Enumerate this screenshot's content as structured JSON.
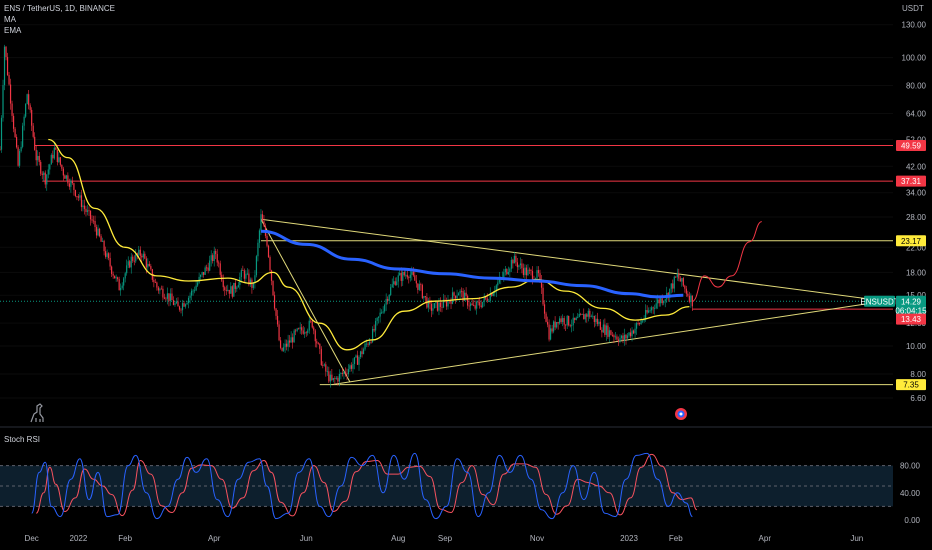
{
  "header": {
    "symbol_line": "ENS / TetherUS, 1D, BINANCE",
    "indicator_ma": "MA",
    "indicator_ema": "EMA"
  },
  "price_axis": {
    "unit": "USDT",
    "ticks": [
      "130.00",
      "100.00",
      "80.00",
      "64.00",
      "52.00",
      "42.00",
      "34.00",
      "28.00",
      "22.00",
      "18.00",
      "15.00",
      "12.00",
      "10.00",
      "8.00",
      "6.60"
    ],
    "tick_values": [
      130,
      100,
      80,
      64,
      52,
      42,
      34,
      28,
      22,
      18,
      15,
      12,
      10,
      8,
      6.6
    ]
  },
  "stoch_axis": {
    "ticks": [
      "80.00",
      "40.00",
      "0.00"
    ],
    "tick_values": [
      80,
      40,
      0
    ]
  },
  "time_axis": {
    "labels": [
      "Dec",
      "2022",
      "Feb",
      "Apr",
      "Jun",
      "Aug",
      "Sep",
      "Nov",
      "2023",
      "Feb",
      "Apr",
      "Jun"
    ],
    "dates": [
      "2021-12-01",
      "2022-01-01",
      "2022-02-01",
      "2022-04-01",
      "2022-06-01",
      "2022-08-01",
      "2022-09-01",
      "2022-11-01",
      "2023-01-01",
      "2023-02-01",
      "2023-04-01",
      "2023-06-01"
    ]
  },
  "price_tags": [
    {
      "label": "49.59",
      "value": 49.59,
      "bg": "#f23645",
      "fg": "#ffffff"
    },
    {
      "label": "37.31",
      "value": 37.31,
      "bg": "#f23645",
      "fg": "#ffffff"
    },
    {
      "label": "23.17",
      "value": 23.17,
      "bg": "#ffeb3b",
      "fg": "#000000"
    },
    {
      "label": "ENSUSDT",
      "value": 14.29,
      "bg": "#089981",
      "fg": "#ffffff"
    },
    {
      "label": "14.29",
      "value": 14.29,
      "bg": "#089981",
      "fg": "#ffffff"
    },
    {
      "label": "06:04:15",
      "value": 13.9,
      "bg": "#089981",
      "fg": "#ffffff"
    },
    {
      "label": "13.43",
      "value": 13.43,
      "bg": "#f23645",
      "fg": "#ffffff"
    },
    {
      "label": "7.35",
      "value": 7.35,
      "bg": "#ffeb3b",
      "fg": "#000000"
    }
  ],
  "stoch_panel": {
    "title": "Stoch RSI"
  },
  "colors": {
    "bull": "#089981",
    "bear": "#f23645",
    "ma": "#2962ff",
    "ema": "#ffeb3b",
    "trendline": "#e0d97a",
    "hline_red": "#f23645",
    "projection": "#f23645",
    "stoch_k": "#2962ff",
    "stoch_d": "#f7525f",
    "stoch_band": "#0d1f2d"
  },
  "chart_data": {
    "type": "candlestick",
    "title": "ENS / TetherUS, 1D, BINANCE",
    "ylabel": "USDT",
    "y_scale": "log",
    "ylim": [
      6,
      135
    ],
    "xlim": [
      "2021-11-10",
      "2023-06-25"
    ],
    "horizontal_levels": [
      49.59,
      37.31,
      23.17,
      13.43,
      7.35
    ],
    "current_price": 14.29,
    "close_path": [
      [
        "2021-11-10",
        48
      ],
      [
        "2021-11-13",
        110
      ],
      [
        "2021-11-18",
        65
      ],
      [
        "2021-11-22",
        42
      ],
      [
        "2021-11-28",
        75
      ],
      [
        "2021-12-04",
        45
      ],
      [
        "2021-12-10",
        38
      ],
      [
        "2021-12-16",
        48
      ],
      [
        "2021-12-22",
        40
      ],
      [
        "2021-12-28",
        36
      ],
      [
        "2022-01-05",
        30
      ],
      [
        "2022-01-12",
        26
      ],
      [
        "2022-01-22",
        19
      ],
      [
        "2022-01-28",
        16
      ],
      [
        "2022-02-05",
        20
      ],
      [
        "2022-02-12",
        21
      ],
      [
        "2022-02-22",
        16
      ],
      [
        "2022-03-01",
        15
      ],
      [
        "2022-03-08",
        13.5
      ],
      [
        "2022-03-16",
        15
      ],
      [
        "2022-03-25",
        18
      ],
      [
        "2022-04-02",
        21
      ],
      [
        "2022-04-08",
        16
      ],
      [
        "2022-04-13",
        15.5
      ],
      [
        "2022-04-20",
        18
      ],
      [
        "2022-04-27",
        16
      ],
      [
        "2022-05-02",
        28
      ],
      [
        "2022-05-06",
        23
      ],
      [
        "2022-05-11",
        14
      ],
      [
        "2022-05-15",
        9.5
      ],
      [
        "2022-05-25",
        11
      ],
      [
        "2022-06-05",
        12
      ],
      [
        "2022-06-12",
        8.5
      ],
      [
        "2022-06-18",
        7.5
      ],
      [
        "2022-06-25",
        8
      ],
      [
        "2022-07-05",
        9
      ],
      [
        "2022-07-15",
        11
      ],
      [
        "2022-07-25",
        15
      ],
      [
        "2022-07-30",
        17
      ],
      [
        "2022-08-08",
        18
      ],
      [
        "2022-08-15",
        16
      ],
      [
        "2022-08-22",
        13.5
      ],
      [
        "2022-09-01",
        14
      ],
      [
        "2022-09-10",
        15.5
      ],
      [
        "2022-09-20",
        13.5
      ],
      [
        "2022-09-28",
        14.5
      ],
      [
        "2022-10-08",
        17
      ],
      [
        "2022-10-16",
        20
      ],
      [
        "2022-10-25",
        18
      ],
      [
        "2022-11-02",
        17.5
      ],
      [
        "2022-11-09",
        11
      ],
      [
        "2022-11-15",
        12.5
      ],
      [
        "2022-11-25",
        12
      ],
      [
        "2022-12-05",
        13
      ],
      [
        "2022-12-15",
        11.5
      ],
      [
        "2022-12-28",
        10.5
      ],
      [
        "2023-01-08",
        12
      ],
      [
        "2023-01-18",
        14
      ],
      [
        "2023-01-26",
        15
      ],
      [
        "2023-02-02",
        17.5
      ],
      [
        "2023-02-08",
        15.5
      ],
      [
        "2023-02-12",
        14.29
      ]
    ],
    "ma_path": [
      [
        "2022-05-02",
        25
      ],
      [
        "2022-06-01",
        22.5
      ],
      [
        "2022-07-01",
        20
      ],
      [
        "2022-08-01",
        18.5
      ],
      [
        "2022-09-01",
        17.8
      ],
      [
        "2022-10-01",
        17.2
      ],
      [
        "2022-11-01",
        16.8
      ],
      [
        "2022-12-01",
        16.2
      ],
      [
        "2023-01-01",
        15.2
      ],
      [
        "2023-01-20",
        14.8
      ],
      [
        "2023-02-06",
        15
      ]
    ],
    "ema_path": [
      [
        "2021-12-12",
        52
      ],
      [
        "2021-12-25",
        45
      ],
      [
        "2022-01-12",
        30
      ],
      [
        "2022-02-01",
        22
      ],
      [
        "2022-02-22",
        17.5
      ],
      [
        "2022-03-15",
        16.8
      ],
      [
        "2022-04-10",
        17.2
      ],
      [
        "2022-04-25",
        16.5
      ],
      [
        "2022-05-10",
        18
      ],
      [
        "2022-05-20",
        16
      ],
      [
        "2022-06-10",
        12
      ],
      [
        "2022-06-28",
        9.7
      ],
      [
        "2022-07-15",
        10.5
      ],
      [
        "2022-08-05",
        13.2
      ],
      [
        "2022-08-25",
        14.3
      ],
      [
        "2022-09-20",
        14.6
      ],
      [
        "2022-10-15",
        16
      ],
      [
        "2022-11-01",
        17
      ],
      [
        "2022-11-20",
        15.5
      ],
      [
        "2022-12-15",
        13.5
      ],
      [
        "2023-01-05",
        12.3
      ],
      [
        "2023-01-25",
        12.8
      ],
      [
        "2023-02-10",
        13.7
      ]
    ],
    "projection_path": [
      [
        "2023-02-12",
        14.3
      ],
      [
        "2023-02-20",
        17.5
      ],
      [
        "2023-03-01",
        16
      ],
      [
        "2023-03-10",
        17.5
      ],
      [
        "2023-03-22",
        23
      ],
      [
        "2023-03-30",
        27
      ]
    ],
    "trendlines": [
      {
        "from": [
          "2022-05-02",
          27.5
        ],
        "to": [
          "2023-06-25",
          14.2
        ]
      },
      {
        "from": [
          "2022-06-18",
          7.35
        ],
        "to": [
          "2023-06-15",
          14.2
        ]
      },
      {
        "from": [
          "2022-05-02",
          27.5
        ],
        "to": [
          "2022-06-30",
          7.5
        ]
      }
    ],
    "stoch_rsi": {
      "ylim": [
        0,
        100
      ],
      "bands": [
        20,
        80
      ],
      "k_path": [
        [
          "2021-12-01",
          10
        ],
        [
          "2021-12-06",
          70
        ],
        [
          "2021-12-10",
          85
        ],
        [
          "2021-12-14",
          20
        ],
        [
          "2021-12-20",
          5
        ],
        [
          "2021-12-27",
          60
        ],
        [
          "2022-01-02",
          90
        ],
        [
          "2022-01-08",
          30
        ],
        [
          "2022-01-14",
          70
        ],
        [
          "2022-01-20",
          5
        ],
        [
          "2022-01-27",
          8
        ],
        [
          "2022-02-03",
          80
        ],
        [
          "2022-02-08",
          95
        ],
        [
          "2022-02-15",
          40
        ],
        [
          "2022-02-22",
          2
        ],
        [
          "2022-03-01",
          20
        ],
        [
          "2022-03-08",
          60
        ],
        [
          "2022-03-14",
          92
        ],
        [
          "2022-03-20",
          70
        ],
        [
          "2022-03-27",
          90
        ],
        [
          "2022-04-03",
          30
        ],
        [
          "2022-04-10",
          5
        ],
        [
          "2022-04-17",
          60
        ],
        [
          "2022-04-24",
          85
        ],
        [
          "2022-05-01",
          90
        ],
        [
          "2022-05-06",
          50
        ],
        [
          "2022-05-12",
          2
        ],
        [
          "2022-05-20",
          10
        ],
        [
          "2022-05-27",
          70
        ],
        [
          "2022-06-03",
          90
        ],
        [
          "2022-06-10",
          20
        ],
        [
          "2022-06-16",
          5
        ],
        [
          "2022-06-24",
          50
        ],
        [
          "2022-07-01",
          92
        ],
        [
          "2022-07-08",
          80
        ],
        [
          "2022-07-15",
          95
        ],
        [
          "2022-07-22",
          40
        ],
        [
          "2022-07-29",
          95
        ],
        [
          "2022-08-05",
          60
        ],
        [
          "2022-08-12",
          98
        ],
        [
          "2022-08-19",
          30
        ],
        [
          "2022-08-26",
          2
        ],
        [
          "2022-09-02",
          20
        ],
        [
          "2022-09-09",
          90
        ],
        [
          "2022-09-16",
          70
        ],
        [
          "2022-09-23",
          5
        ],
        [
          "2022-09-30",
          40
        ],
        [
          "2022-10-07",
          95
        ],
        [
          "2022-10-14",
          70
        ],
        [
          "2022-10-21",
          95
        ],
        [
          "2022-10-28",
          60
        ],
        [
          "2022-11-04",
          15
        ],
        [
          "2022-11-11",
          2
        ],
        [
          "2022-11-18",
          40
        ],
        [
          "2022-11-25",
          80
        ],
        [
          "2022-12-02",
          30
        ],
        [
          "2022-12-09",
          70
        ],
        [
          "2022-12-16",
          10
        ],
        [
          "2022-12-23",
          5
        ],
        [
          "2022-12-30",
          60
        ],
        [
          "2023-01-06",
          95
        ],
        [
          "2023-01-13",
          98
        ],
        [
          "2023-01-20",
          60
        ],
        [
          "2023-01-27",
          20
        ],
        [
          "2023-02-02",
          40
        ],
        [
          "2023-02-08",
          25
        ],
        [
          "2023-02-12",
          5
        ]
      ]
    }
  }
}
